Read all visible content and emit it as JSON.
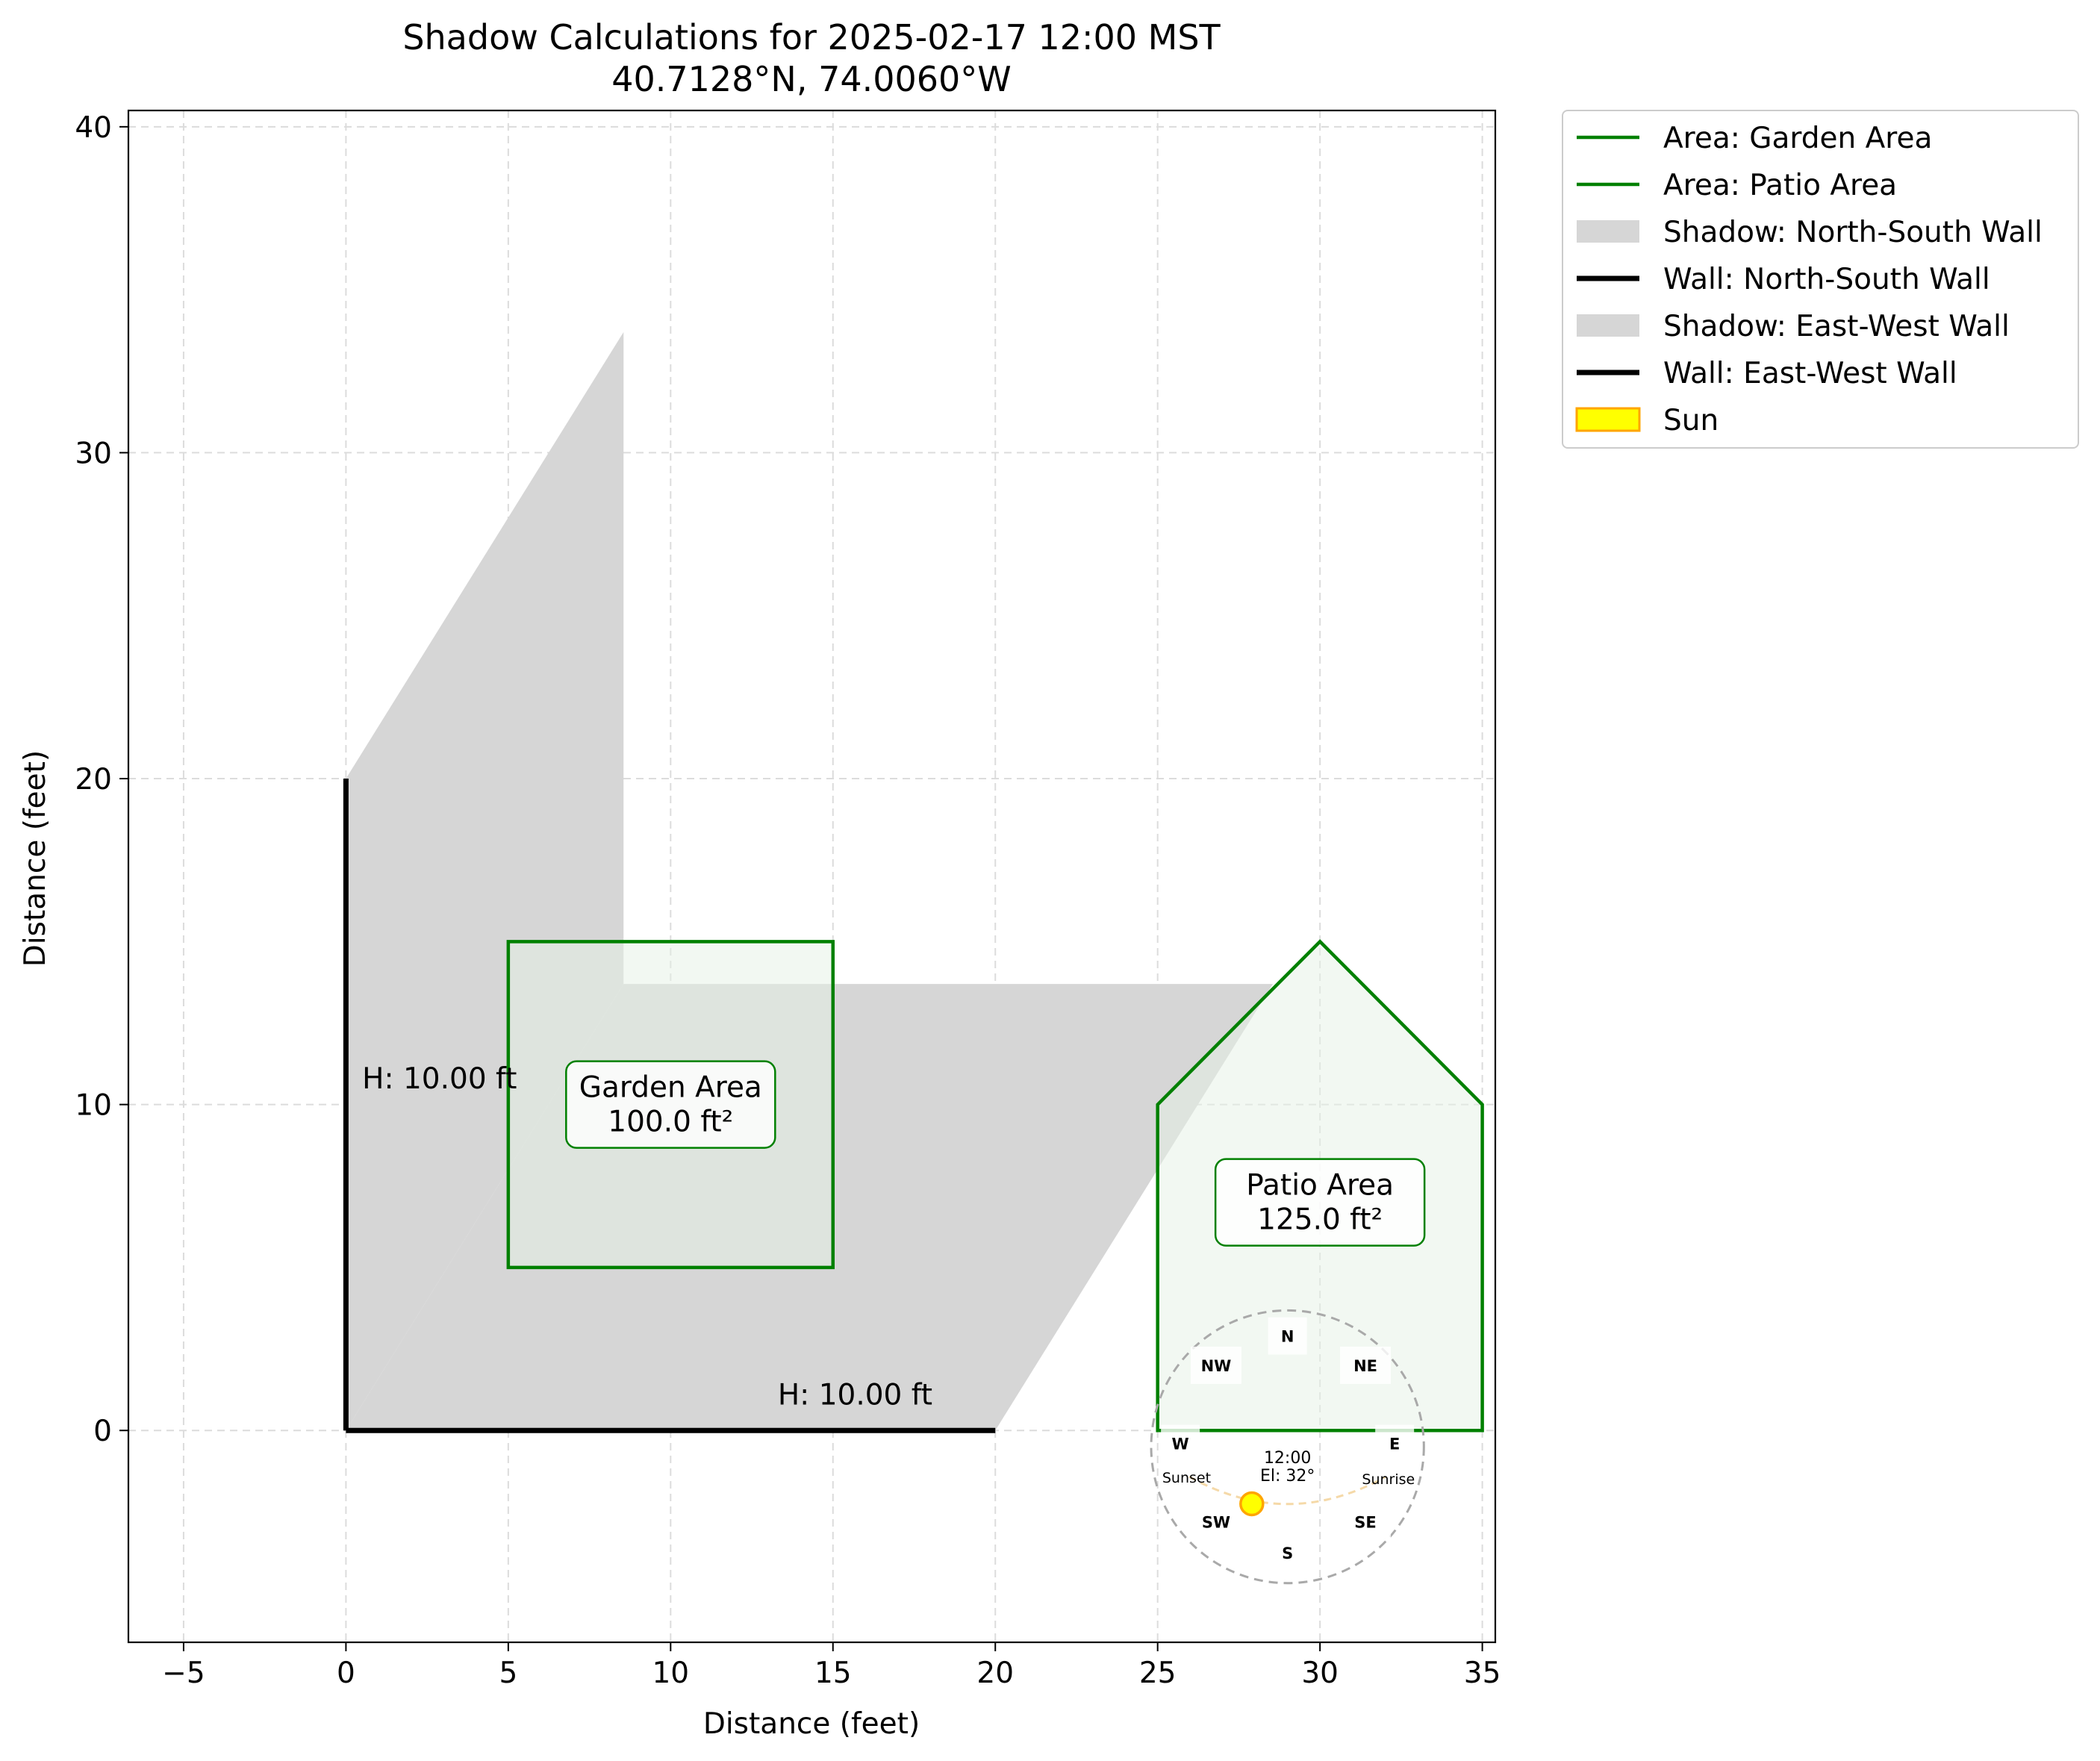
{
  "chart_data": {
    "type": "area",
    "title": "Shadow Calculations for 2025-02-17 12:00 MST",
    "subtitle": "40.7128°N, 74.0060°W",
    "xlabel": "Distance (feet)",
    "ylabel": "Distance (feet)",
    "xlim": [
      -6.7,
      35.4
    ],
    "ylim": [
      -6.5,
      40.5
    ],
    "x_ticks": [
      -5,
      0,
      5,
      10,
      15,
      20,
      25,
      30,
      35
    ],
    "y_ticks": [
      0,
      10,
      20,
      30,
      40
    ],
    "grid": true,
    "legend_position": "outside-top-right",
    "colors": {
      "area_edge": "#008000",
      "area_fill": "#e6f2e6",
      "shadow": "#d6d6d6",
      "wall": "#000000",
      "sun_fill": "#ffff00",
      "sun_edge": "#ffa500",
      "grid": "#dcdcdc"
    },
    "legend": [
      {
        "label": "Area: Garden Area",
        "kind": "line",
        "color": "#008000"
      },
      {
        "label": "Area: Patio Area",
        "kind": "line",
        "color": "#008000"
      },
      {
        "label": "Shadow: North-South Wall",
        "kind": "patch",
        "color": "#d6d6d6"
      },
      {
        "label": "Wall: North-South Wall",
        "kind": "thickline",
        "color": "#000000"
      },
      {
        "label": "Shadow: East-West Wall",
        "kind": "patch",
        "color": "#d6d6d6"
      },
      {
        "label": "Wall: East-West Wall",
        "kind": "thickline",
        "color": "#000000"
      },
      {
        "label": "Sun",
        "kind": "sunpatch",
        "color": "#ffff00"
      }
    ],
    "shadows": [
      {
        "name": "North-South Wall",
        "polygon": [
          [
            0,
            0
          ],
          [
            0,
            20
          ],
          [
            8.55,
            33.7
          ],
          [
            8.55,
            13.7
          ]
        ]
      },
      {
        "name": "East-West Wall",
        "polygon": [
          [
            0,
            0
          ],
          [
            20,
            0
          ],
          [
            28.55,
            13.7
          ],
          [
            8.55,
            13.7
          ]
        ]
      }
    ],
    "walls": [
      {
        "name": "North-South Wall",
        "points": [
          [
            0,
            0
          ],
          [
            0,
            20
          ]
        ],
        "height_label": "H: 10.00 ft",
        "label_at": [
          0.5,
          10.5
        ]
      },
      {
        "name": "East-West Wall",
        "points": [
          [
            0,
            0
          ],
          [
            20,
            0
          ]
        ],
        "height_label": "H: 10.00 ft",
        "label_at": [
          13.3,
          0.8
        ]
      }
    ],
    "areas": [
      {
        "name": "Garden Area",
        "polygon": [
          [
            5,
            5
          ],
          [
            15,
            5
          ],
          [
            15,
            15
          ],
          [
            5,
            15
          ]
        ],
        "label": "Garden Area",
        "area_label": "100.0 ft²",
        "label_at": [
          10,
          10
        ]
      },
      {
        "name": "Patio Area",
        "polygon": [
          [
            25,
            0
          ],
          [
            35,
            0
          ],
          [
            35,
            10
          ],
          [
            30,
            15
          ],
          [
            25,
            10
          ]
        ],
        "label": "Patio Area",
        "area_label": "125.0 ft²",
        "label_at": [
          30,
          7
        ]
      }
    ],
    "compass": {
      "center": [
        29,
        -0.5
      ],
      "radius": 4.2,
      "directions": [
        {
          "label": "N",
          "at": [
            29,
            2.9
          ]
        },
        {
          "label": "NE",
          "at": [
            31.4,
            2.0
          ]
        },
        {
          "label": "E",
          "at": [
            32.3,
            -0.4
          ]
        },
        {
          "label": "SE",
          "at": [
            31.4,
            -2.8
          ]
        },
        {
          "label": "S",
          "at": [
            29,
            -3.75
          ]
        },
        {
          "label": "SW",
          "at": [
            26.8,
            -2.8
          ]
        },
        {
          "label": "W",
          "at": [
            25.7,
            -0.4
          ]
        },
        {
          "label": "NW",
          "at": [
            26.8,
            2.0
          ]
        }
      ],
      "sunset_label": "Sunset",
      "sunrise_label": "Sunrise",
      "time_label": "12:00",
      "elevation_label": "El: 32°",
      "sun_position": [
        27.9,
        -2.25
      ]
    }
  }
}
